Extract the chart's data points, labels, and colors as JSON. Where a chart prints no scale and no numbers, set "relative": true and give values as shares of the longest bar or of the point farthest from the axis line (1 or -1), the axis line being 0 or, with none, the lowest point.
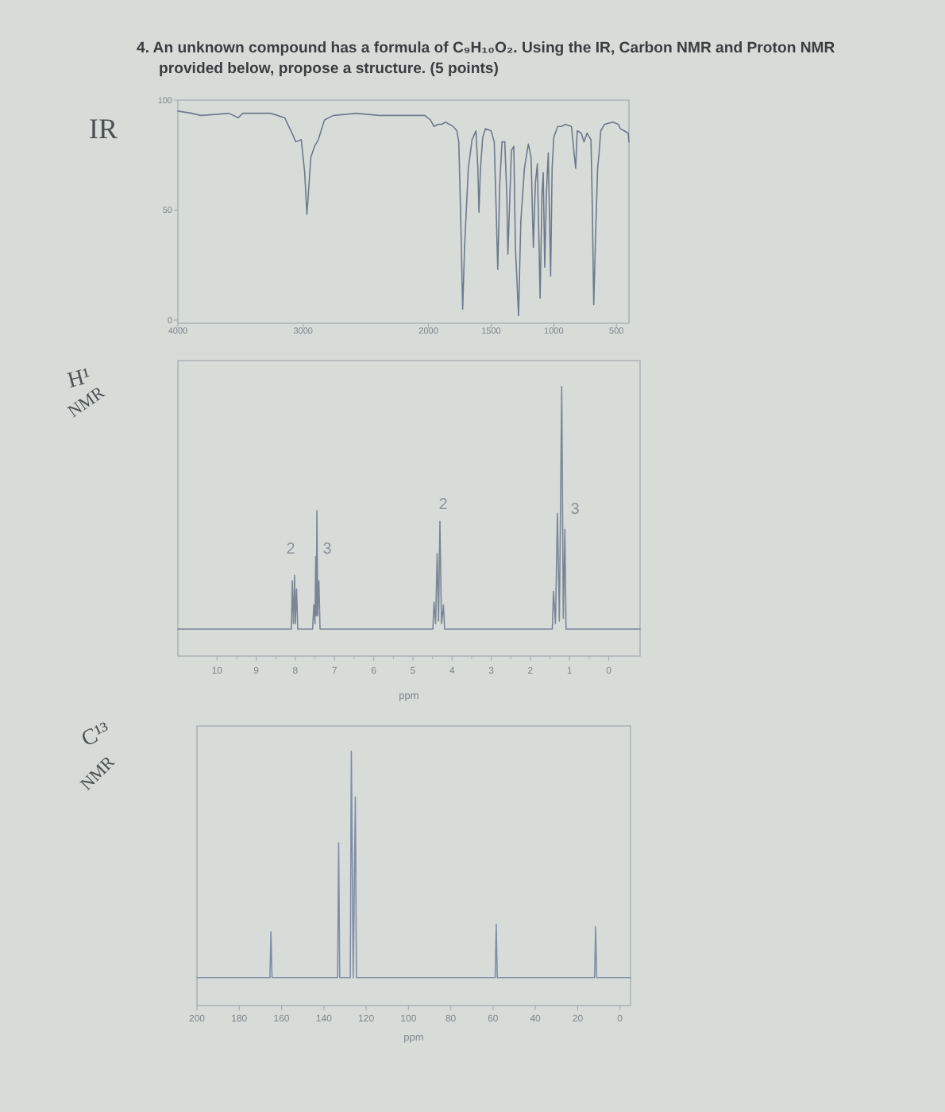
{
  "chart_data": [
    {
      "type": "other",
      "title": "4. An unknown compound has a formula of C₉H₁₀O₂. Using the IR, Carbon NMR and Proton NMR provided below, propose a structure. (5 points)"
    },
    {
      "type": "line",
      "title": "IR",
      "xlim": [
        4000,
        400
      ],
      "xticks": [
        4000,
        3000,
        2000,
        1500,
        1000,
        500
      ],
      "ylim": [
        0,
        100
      ],
      "yticks": [
        0,
        50,
        100
      ],
      "x": [
        4000,
        3889,
        3815,
        3593,
        3519,
        3481,
        3259,
        3148,
        3089,
        3059,
        3015,
        2988,
        2970,
        2939,
        2909,
        2879,
        2830,
        2758,
        2576,
        2394,
        2212,
        2030,
        1985,
        1955,
        1924,
        1894,
        1864,
        1803,
        1773,
        1758,
        1742,
        1727,
        1712,
        1682,
        1652,
        1621,
        1606,
        1597,
        1585,
        1567,
        1545,
        1500,
        1475,
        1463,
        1447,
        1431,
        1413,
        1391,
        1375,
        1366,
        1350,
        1338,
        1319,
        1306,
        1281,
        1263,
        1234,
        1203,
        1181,
        1163,
        1147,
        1131,
        1109,
        1094,
        1084,
        1072,
        1059,
        1044,
        1025,
        1013,
        1000,
        969,
        938,
        906,
        859,
        838,
        825,
        813,
        781,
        759,
        734,
        703,
        694,
        681,
        663,
        650,
        638,
        625,
        594,
        531,
        484,
        469,
        438,
        406,
        400
      ],
      "series": [
        {
          "color": "#6d7a8c",
          "values": [
            95,
            94,
            93,
            94,
            92,
            94,
            94,
            92,
            85,
            81,
            82,
            67,
            48,
            74,
            79,
            82,
            91,
            93,
            94,
            93,
            93,
            93,
            91,
            88,
            89,
            89,
            90,
            88,
            86,
            81,
            45,
            5,
            33,
            69,
            82,
            86,
            69,
            49,
            69,
            83,
            87,
            86,
            81,
            57,
            23,
            62,
            81,
            81,
            57,
            30,
            57,
            77,
            79,
            33,
            2,
            45,
            69,
            80,
            74,
            33,
            62,
            71,
            10,
            57,
            67,
            24,
            57,
            76,
            20,
            69,
            83,
            88,
            88,
            89,
            88,
            76,
            69,
            86,
            85,
            81,
            85,
            82,
            57,
            7,
            45,
            69,
            76,
            86,
            89,
            90,
            89,
            87,
            86,
            85,
            81
          ]
        }
      ]
    },
    {
      "type": "line",
      "title": "H¹ NMR",
      "xlabel": "ppm",
      "xlim": [
        11,
        -0.8
      ],
      "relative": true,
      "xticks": [
        10,
        {
          "value": 9.5,
          "label": null
        },
        9,
        {
          "value": 8.5,
          "label": null
        },
        8,
        {
          "value": 7.5,
          "label": null
        },
        7,
        {
          "value": 6.5,
          "label": null
        },
        6,
        {
          "value": 5.5,
          "label": null
        },
        5,
        {
          "value": 4.5,
          "label": null
        },
        4,
        {
          "value": 3.5,
          "label": null
        },
        3,
        {
          "value": 2.5,
          "label": null
        },
        2,
        {
          "value": 1.5,
          "label": null
        },
        1,
        {
          "value": 0.5,
          "label": null
        },
        0
      ],
      "x": [
        11,
        8.5,
        8.1,
        8.08,
        8.05,
        8.02,
        8,
        7.97,
        7.94,
        7.56,
        7.53,
        7.5,
        7.48,
        7.465,
        7.45,
        7.43,
        7.4,
        7.37,
        4.49,
        4.46,
        4.42,
        4.38,
        4.345,
        4.31,
        4.27,
        4.22,
        4.19,
        1.44,
        1.41,
        1.36,
        1.31,
        1.26,
        1.2,
        1.16,
        1.12,
        1.09,
        -0.8
      ],
      "series": [
        {
          "color": "#7a8696",
          "values": [
            0.1,
            0.1,
            0.1,
            0.28,
            0.12,
            0.3,
            0.12,
            0.25,
            0.1,
            0.1,
            0.19,
            0.12,
            0.37,
            0.15,
            0.54,
            0.15,
            0.28,
            0.1,
            0.1,
            0.2,
            0.12,
            0.38,
            0.13,
            0.5,
            0.12,
            0.19,
            0.1,
            0.1,
            0.24,
            0.12,
            0.53,
            0.13,
            1,
            0.14,
            0.47,
            0.1,
            0.1
          ]
        }
      ],
      "annotations": [
        "2",
        "3",
        "2",
        "3"
      ]
    },
    {
      "type": "line",
      "title": "C¹³ NMR",
      "xlabel": "ppm",
      "xlim": [
        200,
        -5
      ],
      "relative": true,
      "xticks": [
        200,
        180,
        160,
        140,
        120,
        100,
        80,
        60,
        40,
        20,
        0
      ],
      "x": [
        200,
        165.5,
        165,
        164.5,
        133.5,
        133,
        132.5,
        127.5,
        127,
        126.1,
        125.1,
        124.6,
        59,
        58.5,
        58,
        12,
        11.5,
        11,
        -5
      ],
      "series": [
        {
          "color": "#7f8ea6",
          "values": [
            0.11,
            0.11,
            0.29,
            0.11,
            0.11,
            0.64,
            0.11,
            0.11,
            1,
            0.11,
            0.82,
            0.11,
            0.11,
            0.32,
            0.11,
            0.11,
            0.31,
            0.11,
            0.11
          ]
        }
      ]
    }
  ]
}
